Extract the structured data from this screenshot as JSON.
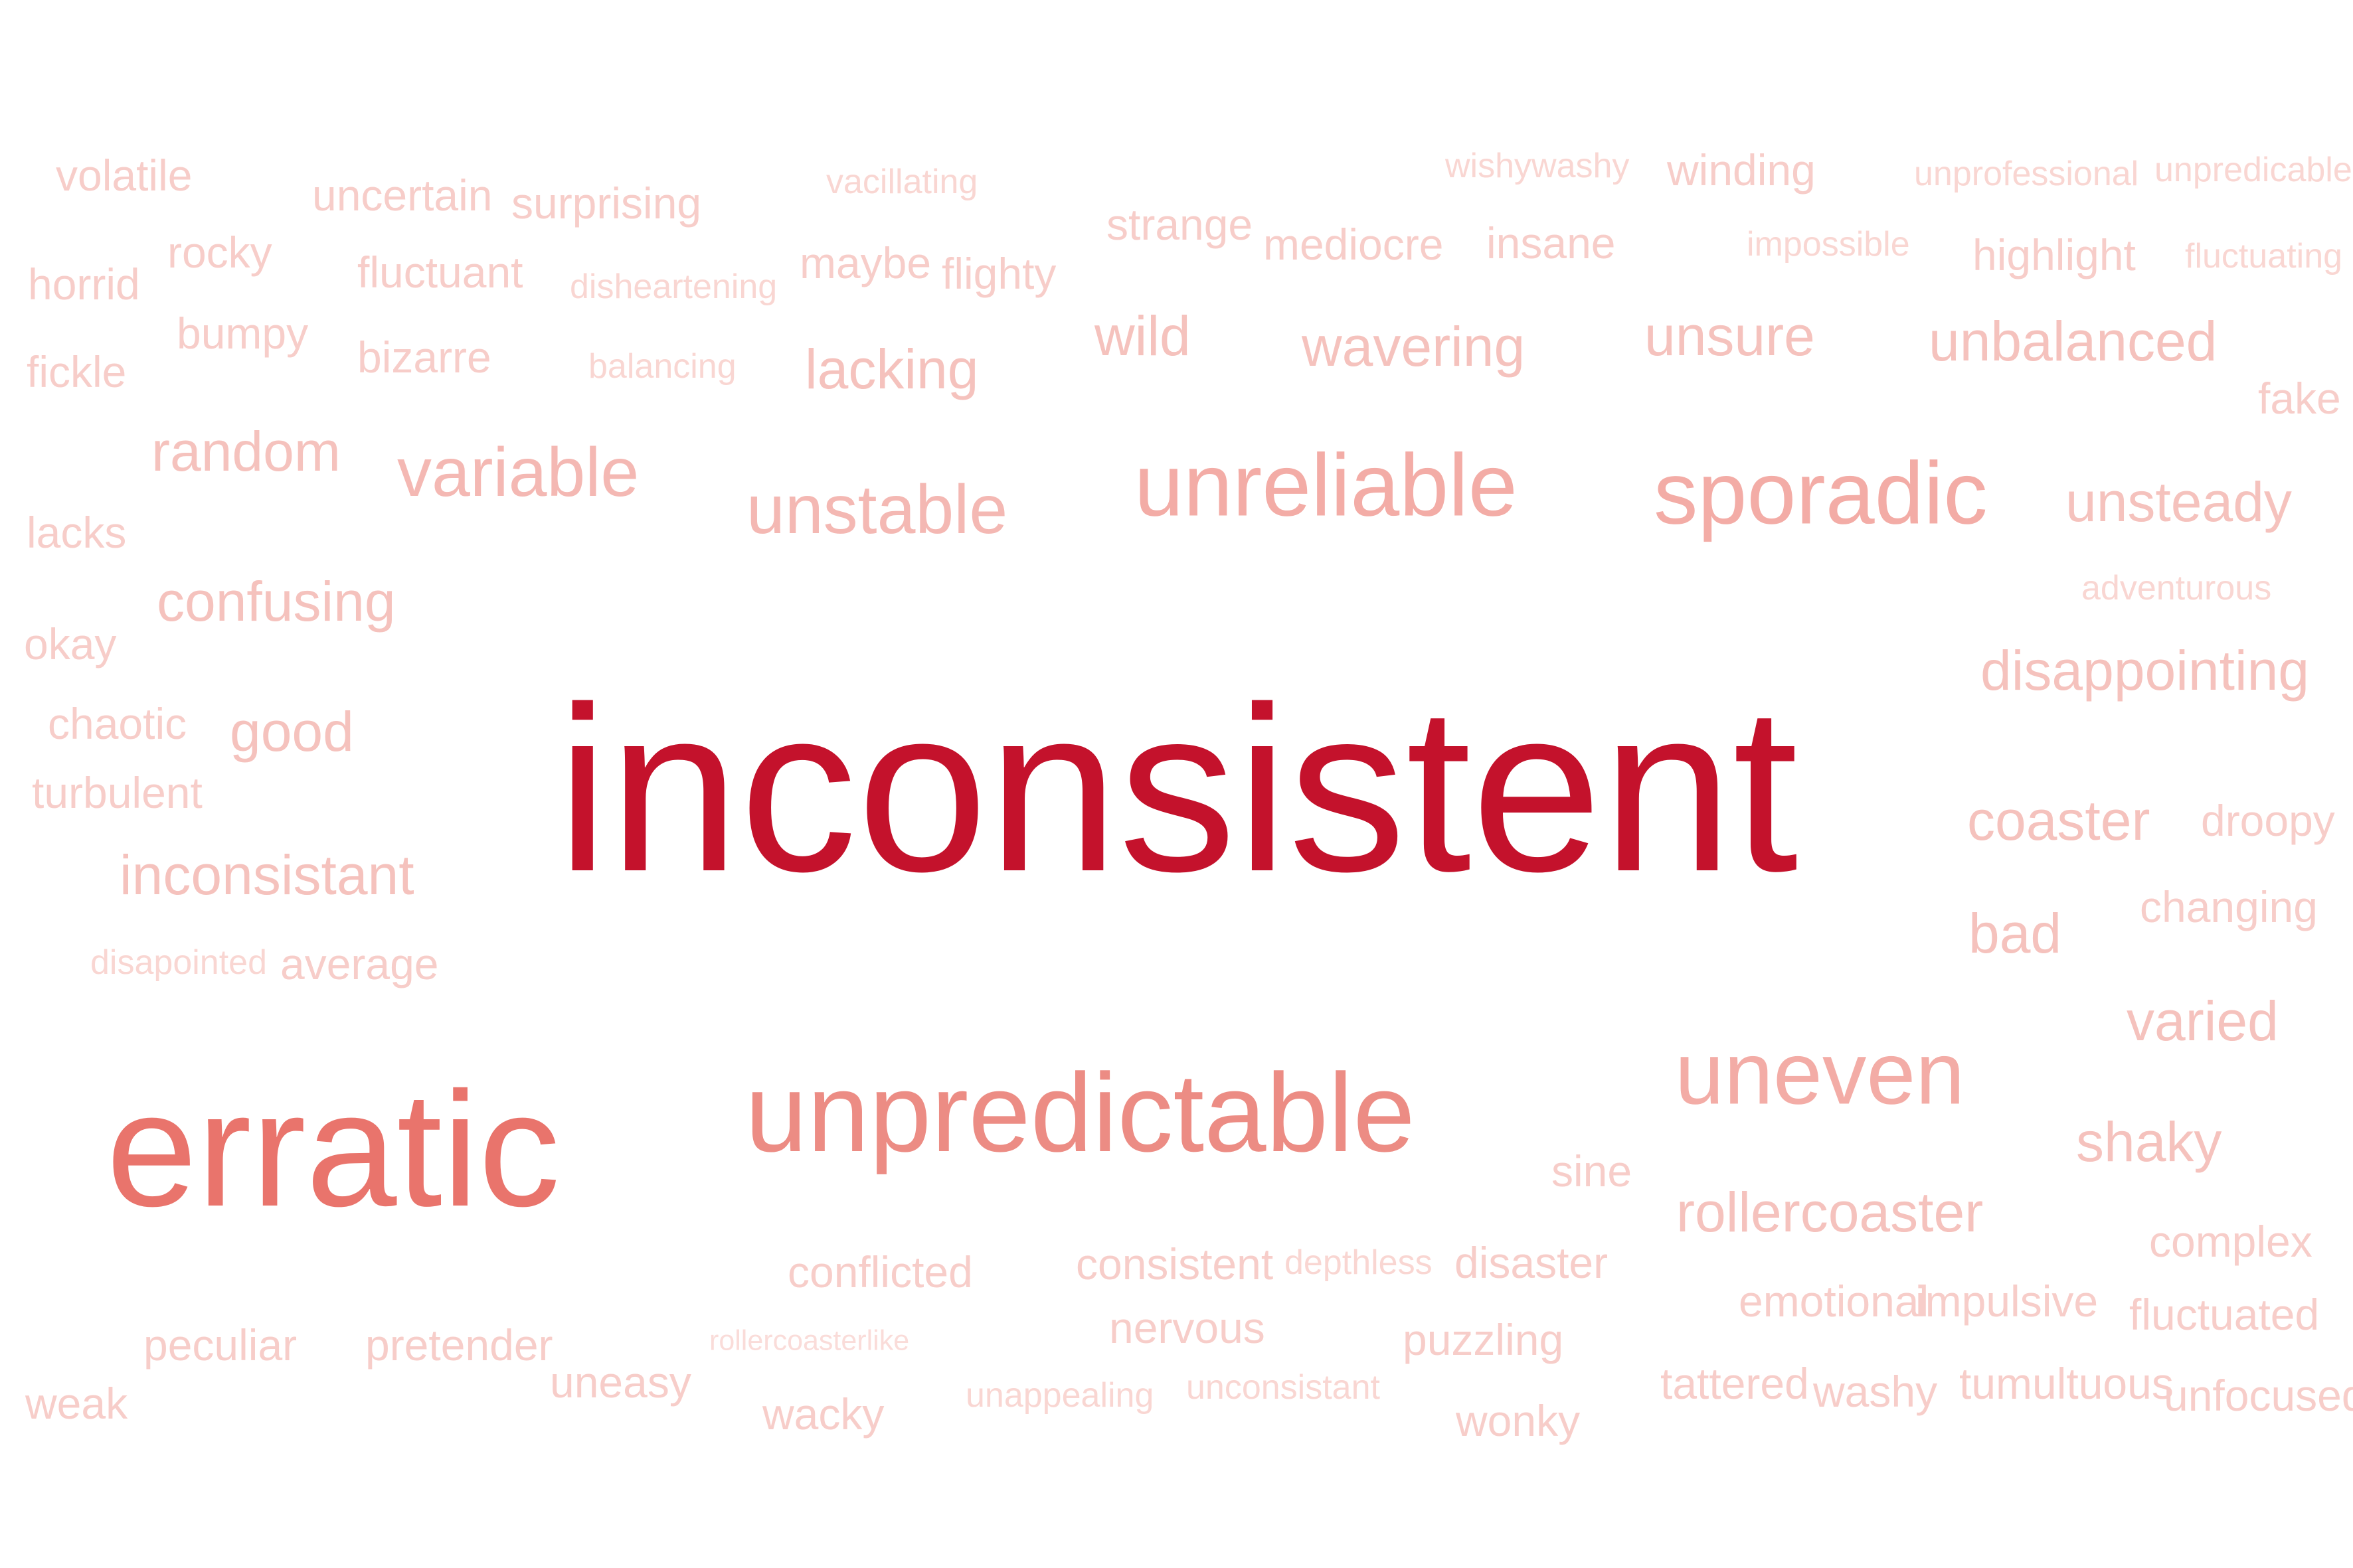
{
  "words": [
    {
      "text": "inconsistent",
      "tier": 1
    },
    {
      "text": "erratic",
      "tier": 2
    },
    {
      "text": "unpredictable",
      "tier": 3
    },
    {
      "text": "unreliable",
      "tier": 4
    },
    {
      "text": "sporadic",
      "tier": 4
    },
    {
      "text": "uneven",
      "tier": 4
    },
    {
      "text": "unstable",
      "tier": 5
    },
    {
      "text": "variable",
      "tier": 5
    },
    {
      "text": "wild",
      "tier": 6
    },
    {
      "text": "lacking",
      "tier": 6
    },
    {
      "text": "wavering",
      "tier": 6
    },
    {
      "text": "unsure",
      "tier": 6
    },
    {
      "text": "unbalanced",
      "tier": 6
    },
    {
      "text": "random",
      "tier": 6
    },
    {
      "text": "unsteady",
      "tier": 6
    },
    {
      "text": "confusing",
      "tier": 6
    },
    {
      "text": "good",
      "tier": 6
    },
    {
      "text": "inconsistant",
      "tier": 6
    },
    {
      "text": "disappointing",
      "tier": 6
    },
    {
      "text": "coaster",
      "tier": 6
    },
    {
      "text": "bad",
      "tier": 6
    },
    {
      "text": "varied",
      "tier": 6
    },
    {
      "text": "shaky",
      "tier": 6
    },
    {
      "text": "rollercoaster",
      "tier": 6
    },
    {
      "text": "fake",
      "tier": 7
    },
    {
      "text": "strange",
      "tier": 7
    },
    {
      "text": "mediocre",
      "tier": 7
    },
    {
      "text": "insane",
      "tier": 7
    },
    {
      "text": "winding",
      "tier": 7
    },
    {
      "text": "highlight",
      "tier": 7
    },
    {
      "text": "rocky",
      "tier": 7
    },
    {
      "text": "horrid",
      "tier": 7
    },
    {
      "text": "fickle",
      "tier": 7
    },
    {
      "text": "lacks",
      "tier": 7
    },
    {
      "text": "okay",
      "tier": 7
    },
    {
      "text": "volatile",
      "tier": 7
    },
    {
      "text": "uncertain",
      "tier": 7
    },
    {
      "text": "surprising",
      "tier": 7
    },
    {
      "text": "fluctuant",
      "tier": 7
    },
    {
      "text": "bizarre",
      "tier": 7
    },
    {
      "text": "maybe",
      "tier": 7
    },
    {
      "text": "flighty",
      "tier": 7
    },
    {
      "text": "bumpy",
      "tier": 7
    },
    {
      "text": "chaotic",
      "tier": 7
    },
    {
      "text": "turbulent",
      "tier": 7
    },
    {
      "text": "average",
      "tier": 7
    },
    {
      "text": "sine",
      "tier": 7
    },
    {
      "text": "conflicted",
      "tier": 7
    },
    {
      "text": "nervous",
      "tier": 7
    },
    {
      "text": "puzzling",
      "tier": 7
    },
    {
      "text": "wacky",
      "tier": 7
    },
    {
      "text": "uneasy",
      "tier": 7
    },
    {
      "text": "wonky",
      "tier": 7
    },
    {
      "text": "washy",
      "tier": 7
    },
    {
      "text": "tattered",
      "tier": 7
    },
    {
      "text": "weak",
      "tier": 7
    },
    {
      "text": "peculiar",
      "tier": 7
    },
    {
      "text": "pretender",
      "tier": 7
    },
    {
      "text": "consistent",
      "tier": 7
    },
    {
      "text": "disaster",
      "tier": 7
    },
    {
      "text": "emotional",
      "tier": 7
    },
    {
      "text": "impulsive",
      "tier": 7
    },
    {
      "text": "complex",
      "tier": 7
    },
    {
      "text": "fluctuated",
      "tier": 7
    },
    {
      "text": "unfocused",
      "tier": 7
    },
    {
      "text": "tumultuous",
      "tier": 7
    },
    {
      "text": "droopy",
      "tier": 7
    },
    {
      "text": "changing",
      "tier": 7
    },
    {
      "text": "vacillating",
      "tier": 8
    },
    {
      "text": "wishywashy",
      "tier": 8
    },
    {
      "text": "unprofessional",
      "tier": 8
    },
    {
      "text": "unpredicable",
      "tier": 8
    },
    {
      "text": "impossible",
      "tier": 8
    },
    {
      "text": "fluctuating",
      "tier": 8
    },
    {
      "text": "disheartening",
      "tier": 8
    },
    {
      "text": "balancing",
      "tier": 8
    },
    {
      "text": "adventurous",
      "tier": 8
    },
    {
      "text": "disapointed",
      "tier": 8
    },
    {
      "text": "depthless",
      "tier": 8
    },
    {
      "text": "rollercoasterlike",
      "tier": 9
    },
    {
      "text": "unappealing",
      "tier": 8
    },
    {
      "text": "unconsistant",
      "tier": 8
    }
  ]
}
